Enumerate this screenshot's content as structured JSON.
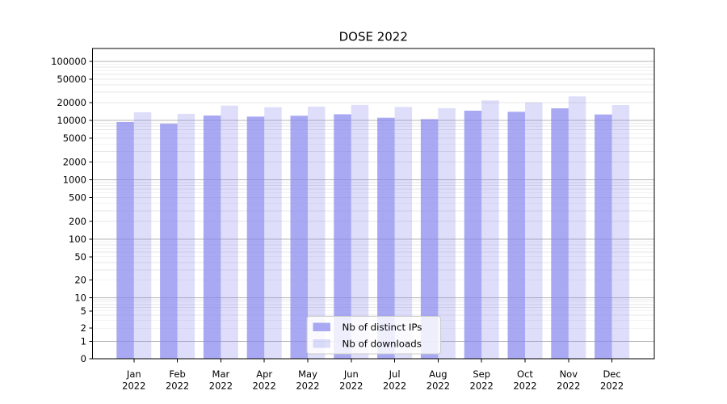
{
  "chart_data": {
    "type": "bar",
    "title": "DOSE 2022",
    "categories": [
      "Jan",
      "Feb",
      "Mar",
      "Apr",
      "May",
      "Jun",
      "Jul",
      "Aug",
      "Sep",
      "Oct",
      "Nov",
      "Dec"
    ],
    "category_year": "2022",
    "series": [
      {
        "name": "Nb of distinct IPs",
        "values": [
          9400,
          8800,
          12100,
          11600,
          12000,
          12700,
          11100,
          10500,
          14600,
          14000,
          16000,
          12600
        ]
      },
      {
        "name": "Nb of downloads",
        "values": [
          13700,
          12900,
          17800,
          16700,
          17100,
          18300,
          16900,
          16100,
          21800,
          20100,
          25500,
          18200
        ]
      }
    ],
    "y_axis": {
      "scale": "symlog",
      "tick_values": [
        0,
        1,
        2,
        5,
        10,
        20,
        50,
        100,
        200,
        500,
        1000,
        2000,
        5000,
        10000,
        20000,
        50000,
        100000
      ],
      "tick_labels": [
        "0",
        "1",
        "2",
        "5",
        "10",
        "20",
        "50",
        "100",
        "200",
        "500",
        "1000",
        "2000",
        "5000",
        "10000",
        "20000",
        "50000",
        "100000"
      ],
      "ylim": [
        0,
        160000
      ]
    },
    "legend": {
      "position": "lower center",
      "entries": [
        "Nb of distinct IPs",
        "Nb of downloads"
      ]
    },
    "grid": true,
    "colors": {
      "bar_base": "#8888ee",
      "series_opacity": [
        0.72,
        0.28
      ],
      "bar_dark_apparent": "#a9a9f1",
      "bar_light_apparent": "#dcdcf8",
      "grid_major": "#b4b4b4",
      "grid_minor": "#e7e7e7",
      "spine": "#000000",
      "legend_border": "#cccccc"
    }
  }
}
